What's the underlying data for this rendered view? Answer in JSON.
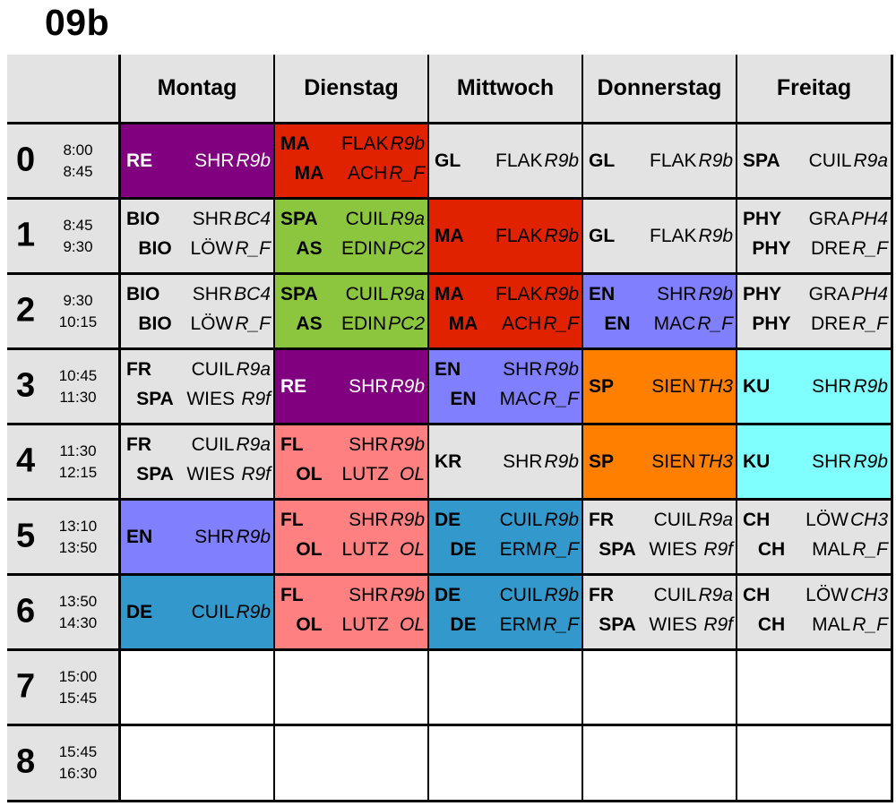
{
  "class_name": "09b",
  "days": [
    "Montag",
    "Dienstag",
    "Mittwoch",
    "Donnerstag",
    "Freitag"
  ],
  "periods": [
    {
      "num": "0",
      "start": "8:00",
      "end": "8:45"
    },
    {
      "num": "1",
      "start": "8:45",
      "end": "9:30"
    },
    {
      "num": "2",
      "start": "9:30",
      "end": "10:15"
    },
    {
      "num": "3",
      "start": "10:45",
      "end": "11:30"
    },
    {
      "num": "4",
      "start": "11:30",
      "end": "12:15"
    },
    {
      "num": "5",
      "start": "13:10",
      "end": "13:50"
    },
    {
      "num": "6",
      "start": "13:50",
      "end": "14:30"
    },
    {
      "num": "7",
      "start": "15:00",
      "end": "15:45"
    },
    {
      "num": "8",
      "start": "15:45",
      "end": "16:30"
    }
  ],
  "colors": {
    "purple": "#800080",
    "red": "#e02200",
    "green": "#8cc63f",
    "blue": "#8080ff",
    "orange": "#ff8000",
    "cyan": "#80ffff",
    "teal": "#3399cc",
    "pink": "#ff8080",
    "grey": "#e3e3e3",
    "white": "#ffffff"
  },
  "schedule": [
    [
      {
        "color": "purple",
        "text_color": "#ffffff",
        "lines": [
          {
            "subject": "RE",
            "teacher": "SHR",
            "room": "R9b"
          }
        ]
      },
      {
        "color": "red",
        "lines": [
          {
            "subject": "MA",
            "teacher": "FLAK",
            "room": "R9b"
          },
          {
            "subject": "MA",
            "teacher": "ACH",
            "room": "R_F"
          }
        ]
      },
      {
        "color": "grey",
        "lines": [
          {
            "subject": "GL",
            "teacher": "FLAK",
            "room": "R9b"
          }
        ]
      },
      {
        "color": "grey",
        "lines": [
          {
            "subject": "GL",
            "teacher": "FLAK",
            "room": "R9b"
          }
        ]
      },
      {
        "color": "grey",
        "lines": [
          {
            "subject": "SPA",
            "teacher": "CUIL",
            "room": "R9a"
          }
        ]
      }
    ],
    [
      {
        "color": "grey",
        "lines": [
          {
            "subject": "BIO",
            "teacher": "SHR",
            "room": "BC4"
          },
          {
            "subject": "BIO",
            "teacher": "LÖW",
            "room": "R_F"
          }
        ]
      },
      {
        "color": "green",
        "lines": [
          {
            "subject": "SPA",
            "teacher": "CUIL",
            "room": "R9a"
          },
          {
            "subject": "AS",
            "teacher": "EDIN",
            "room": "PC2"
          }
        ]
      },
      {
        "color": "red",
        "lines": [
          {
            "subject": "MA",
            "teacher": "FLAK",
            "room": "R9b"
          }
        ]
      },
      {
        "color": "grey",
        "lines": [
          {
            "subject": "GL",
            "teacher": "FLAK",
            "room": "R9b"
          }
        ]
      },
      {
        "color": "grey",
        "lines": [
          {
            "subject": "PHY",
            "teacher": "GRA",
            "room": "PH4"
          },
          {
            "subject": "PHY",
            "teacher": "DRE",
            "room": "R_F"
          }
        ]
      }
    ],
    [
      {
        "color": "grey",
        "lines": [
          {
            "subject": "BIO",
            "teacher": "SHR",
            "room": "BC4"
          },
          {
            "subject": "BIO",
            "teacher": "LÖW",
            "room": "R_F"
          }
        ]
      },
      {
        "color": "green",
        "lines": [
          {
            "subject": "SPA",
            "teacher": "CUIL",
            "room": "R9a"
          },
          {
            "subject": "AS",
            "teacher": "EDIN",
            "room": "PC2"
          }
        ]
      },
      {
        "color": "red",
        "lines": [
          {
            "subject": "MA",
            "teacher": "FLAK",
            "room": "R9b"
          },
          {
            "subject": "MA",
            "teacher": "ACH",
            "room": "R_F"
          }
        ]
      },
      {
        "color": "blue",
        "lines": [
          {
            "subject": "EN",
            "teacher": "SHR",
            "room": "R9b"
          },
          {
            "subject": "EN",
            "teacher": "MAC",
            "room": "R_F"
          }
        ]
      },
      {
        "color": "grey",
        "lines": [
          {
            "subject": "PHY",
            "teacher": "GRA",
            "room": "PH4"
          },
          {
            "subject": "PHY",
            "teacher": "DRE",
            "room": "R_F"
          }
        ]
      }
    ],
    [
      {
        "color": "grey",
        "lines": [
          {
            "subject": "FR",
            "teacher": "CUIL",
            "room": "R9a"
          },
          {
            "subject": "SPA",
            "teacher": "WIES",
            "room": "R9f"
          }
        ]
      },
      {
        "color": "purple",
        "text_color": "#ffffff",
        "lines": [
          {
            "subject": "RE",
            "teacher": "SHR",
            "room": "R9b"
          }
        ]
      },
      {
        "color": "blue",
        "lines": [
          {
            "subject": "EN",
            "teacher": "SHR",
            "room": "R9b"
          },
          {
            "subject": "EN",
            "teacher": "MAC",
            "room": "R_F"
          }
        ]
      },
      {
        "color": "orange",
        "lines": [
          {
            "subject": "SP",
            "teacher": "SIEN",
            "room": "TH3"
          }
        ]
      },
      {
        "color": "cyan",
        "lines": [
          {
            "subject": "KU",
            "teacher": "SHR",
            "room": "R9b"
          }
        ]
      }
    ],
    [
      {
        "color": "grey",
        "lines": [
          {
            "subject": "FR",
            "teacher": "CUIL",
            "room": "R9a"
          },
          {
            "subject": "SPA",
            "teacher": "WIES",
            "room": "R9f"
          }
        ]
      },
      {
        "color": "pink",
        "lines": [
          {
            "subject": "FL",
            "teacher": "SHR",
            "room": "R9b"
          },
          {
            "subject": "OL",
            "teacher": "LUTZ",
            "room": "OL"
          }
        ]
      },
      {
        "color": "grey",
        "lines": [
          {
            "subject": "KR",
            "teacher": "SHR",
            "room": "R9b"
          }
        ]
      },
      {
        "color": "orange",
        "lines": [
          {
            "subject": "SP",
            "teacher": "SIEN",
            "room": "TH3"
          }
        ]
      },
      {
        "color": "cyan",
        "lines": [
          {
            "subject": "KU",
            "teacher": "SHR",
            "room": "R9b"
          }
        ]
      }
    ],
    [
      {
        "color": "blue",
        "lines": [
          {
            "subject": "EN",
            "teacher": "SHR",
            "room": "R9b"
          }
        ]
      },
      {
        "color": "pink",
        "lines": [
          {
            "subject": "FL",
            "teacher": "SHR",
            "room": "R9b"
          },
          {
            "subject": "OL",
            "teacher": "LUTZ",
            "room": "OL"
          }
        ]
      },
      {
        "color": "teal",
        "lines": [
          {
            "subject": "DE",
            "teacher": "CUIL",
            "room": "R9b"
          },
          {
            "subject": "DE",
            "teacher": "ERM",
            "room": "R_F"
          }
        ]
      },
      {
        "color": "grey",
        "lines": [
          {
            "subject": "FR",
            "teacher": "CUIL",
            "room": "R9a"
          },
          {
            "subject": "SPA",
            "teacher": "WIES",
            "room": "R9f"
          }
        ]
      },
      {
        "color": "grey",
        "lines": [
          {
            "subject": "CH",
            "teacher": "LÖW",
            "room": "CH3"
          },
          {
            "subject": "CH",
            "teacher": "MAL",
            "room": "R_F"
          }
        ]
      }
    ],
    [
      {
        "color": "teal",
        "lines": [
          {
            "subject": "DE",
            "teacher": "CUIL",
            "room": "R9b"
          }
        ]
      },
      {
        "color": "pink",
        "lines": [
          {
            "subject": "FL",
            "teacher": "SHR",
            "room": "R9b"
          },
          {
            "subject": "OL",
            "teacher": "LUTZ",
            "room": "OL"
          }
        ]
      },
      {
        "color": "teal",
        "lines": [
          {
            "subject": "DE",
            "teacher": "CUIL",
            "room": "R9b"
          },
          {
            "subject": "DE",
            "teacher": "ERM",
            "room": "R_F"
          }
        ]
      },
      {
        "color": "grey",
        "lines": [
          {
            "subject": "FR",
            "teacher": "CUIL",
            "room": "R9a"
          },
          {
            "subject": "SPA",
            "teacher": "WIES",
            "room": "R9f"
          }
        ]
      },
      {
        "color": "grey",
        "lines": [
          {
            "subject": "CH",
            "teacher": "LÖW",
            "room": "CH3"
          },
          {
            "subject": "CH",
            "teacher": "MAL",
            "room": "R_F"
          }
        ]
      }
    ],
    [
      {
        "color": "white",
        "lines": []
      },
      {
        "color": "white",
        "lines": []
      },
      {
        "color": "white",
        "lines": []
      },
      {
        "color": "white",
        "lines": []
      },
      {
        "color": "white",
        "lines": []
      }
    ],
    [
      {
        "color": "white",
        "lines": []
      },
      {
        "color": "white",
        "lines": []
      },
      {
        "color": "white",
        "lines": []
      },
      {
        "color": "white",
        "lines": []
      },
      {
        "color": "white",
        "lines": []
      }
    ]
  ]
}
